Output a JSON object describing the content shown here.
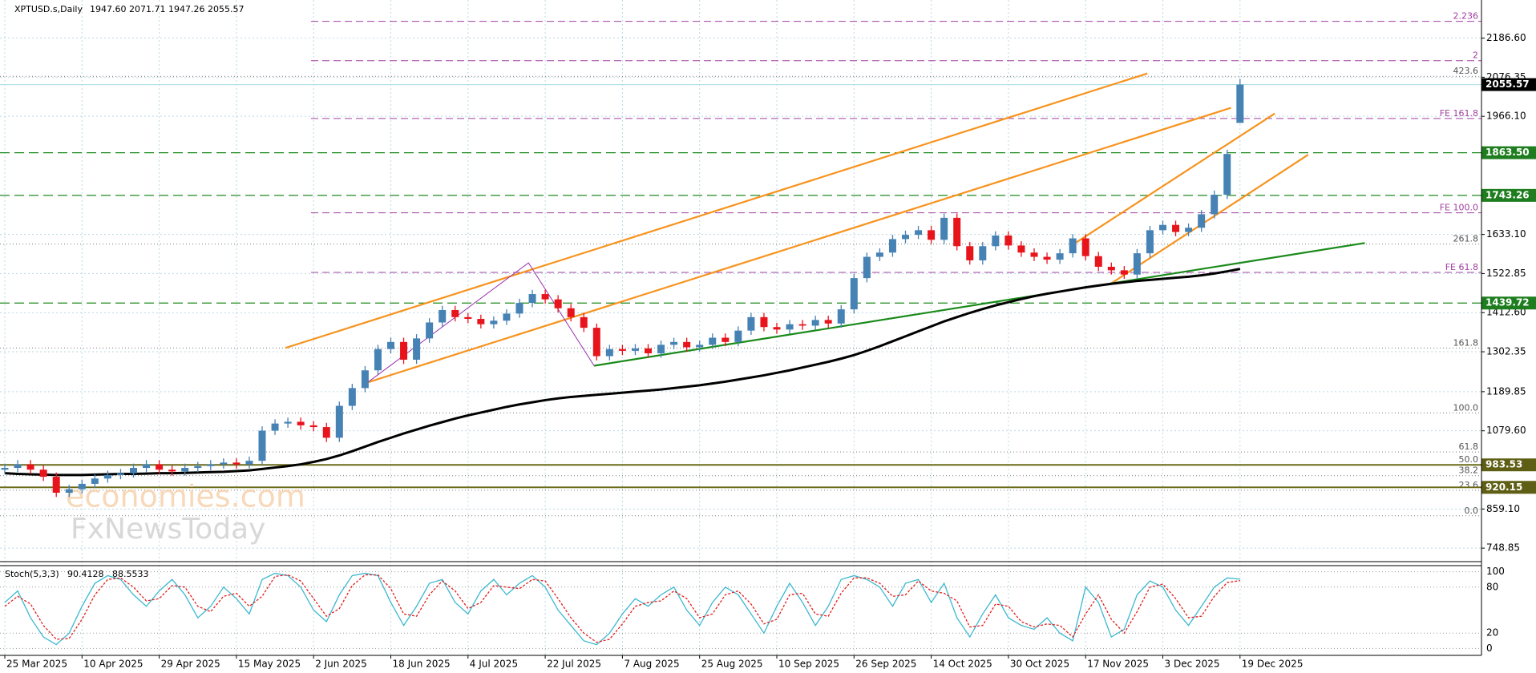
{
  "chart_data": {
    "type": "candlestick",
    "title": "XPTUSD.s,Daily",
    "ohlc_label": "1947.60 2071.71 1947.26 2055.57",
    "up_color": "#4682b4",
    "down_color": "#e8141c",
    "grid": true,
    "ylim": [
      713,
      2294
    ],
    "yticks": [
      {
        "value": 2186.6,
        "label": "2186.60"
      },
      2076.35,
      {
        "value": 1966.1,
        "label": "1966.10"
      },
      {
        "value": 1633.1,
        "label": "1633.10"
      },
      1522.85,
      {
        "value": 1412.6,
        "label": "1412.60"
      },
      1302.35,
      1189.85,
      {
        "value": 1079.6,
        "label": "1079.60"
      },
      {
        "value": 859.1,
        "label": "859.10"
      },
      748.85
    ],
    "categories": [
      "25 Mar 2025",
      null,
      null,
      null,
      null,
      null,
      "10 Apr 2025",
      null,
      null,
      null,
      null,
      null,
      "29 Apr 2025",
      null,
      null,
      null,
      null,
      null,
      "15 May 2025",
      null,
      null,
      null,
      null,
      null,
      "2 Jun 2025",
      null,
      null,
      null,
      null,
      null,
      "18 Jun 2025",
      null,
      null,
      null,
      null,
      null,
      "4 Jul 2025",
      null,
      null,
      null,
      null,
      null,
      "22 Jul 2025",
      null,
      null,
      null,
      null,
      null,
      "7 Aug 2025",
      null,
      null,
      null,
      null,
      null,
      "25 Aug 2025",
      null,
      null,
      null,
      null,
      null,
      "10 Sep 2025",
      null,
      null,
      null,
      null,
      null,
      "26 Sep 2025",
      null,
      null,
      null,
      null,
      null,
      "14 Oct 2025",
      null,
      null,
      null,
      null,
      null,
      "30 Oct 2025",
      null,
      null,
      null,
      null,
      null,
      "17 Nov 2025",
      null,
      null,
      null,
      null,
      null,
      "3 Dec 2025",
      null,
      null,
      null,
      null,
      null,
      "19 Dec 2025"
    ],
    "open": [
      970,
      975,
      985,
      970,
      950,
      905,
      915,
      930,
      945,
      955,
      960,
      975,
      985,
      970,
      965,
      975,
      980,
      985,
      990,
      985,
      995,
      1080,
      1100,
      1105,
      1095,
      1090,
      1060,
      1150,
      1200,
      1250,
      1310,
      1330,
      1280,
      1340,
      1385,
      1420,
      1400,
      1395,
      1380,
      1390,
      1410,
      1440,
      1465,
      1450,
      1425,
      1400,
      1370,
      1290,
      1310,
      1305,
      1312,
      1298,
      1322,
      1330,
      1315,
      1322,
      1342,
      1330,
      1362,
      1400,
      1372,
      1365,
      1380,
      1376,
      1392,
      1382,
      1422,
      1510,
      1570,
      1582,
      1620,
      1632,
      1645,
      1618,
      1680,
      1600,
      1560,
      1600,
      1630,
      1602,
      1582,
      1570,
      1562,
      1580,
      1622,
      1572,
      1542,
      1532,
      1520,
      1580,
      1645,
      1660,
      1640,
      1652,
      1690,
      1745,
      1947.6
    ],
    "high": [
      987,
      997,
      997,
      982,
      962,
      927,
      942,
      957,
      967,
      972,
      987,
      997,
      997,
      982,
      987,
      992,
      997,
      1002,
      1002,
      1007,
      1092,
      1112,
      1117,
      1117,
      1107,
      1102,
      1162,
      1212,
      1262,
      1322,
      1342,
      1342,
      1352,
      1397,
      1432,
      1432,
      1412,
      1407,
      1402,
      1422,
      1452,
      1477,
      1477,
      1462,
      1437,
      1412,
      1382,
      1322,
      1322,
      1324,
      1324,
      1334,
      1342,
      1342,
      1334,
      1354,
      1354,
      1374,
      1412,
      1412,
      1384,
      1392,
      1392,
      1404,
      1404,
      1434,
      1522,
      1582,
      1594,
      1632,
      1644,
      1657,
      1657,
      1692,
      1692,
      1612,
      1612,
      1642,
      1642,
      1614,
      1594,
      1582,
      1592,
      1634,
      1634,
      1584,
      1554,
      1544,
      1592,
      1657,
      1672,
      1672,
      1664,
      1702,
      1757,
      1872,
      2071.71
    ],
    "low": [
      958,
      963,
      958,
      938,
      893,
      893,
      903,
      918,
      933,
      943,
      948,
      963,
      958,
      953,
      953,
      963,
      968,
      973,
      973,
      973,
      983,
      1068,
      1088,
      1083,
      1078,
      1048,
      1048,
      1138,
      1188,
      1238,
      1298,
      1268,
      1268,
      1328,
      1373,
      1388,
      1383,
      1368,
      1368,
      1378,
      1398,
      1428,
      1438,
      1413,
      1388,
      1358,
      1278,
      1278,
      1293,
      1293,
      1286,
      1286,
      1310,
      1303,
      1303,
      1310,
      1318,
      1318,
      1350,
      1360,
      1353,
      1353,
      1364,
      1364,
      1370,
      1370,
      1410,
      1498,
      1558,
      1570,
      1608,
      1620,
      1606,
      1606,
      1588,
      1548,
      1548,
      1588,
      1590,
      1570,
      1558,
      1550,
      1550,
      1568,
      1560,
      1530,
      1520,
      1508,
      1508,
      1568,
      1633,
      1628,
      1628,
      1640,
      1678,
      1733,
      1947.26
    ],
    "close": [
      975,
      985,
      970,
      950,
      905,
      915,
      930,
      945,
      955,
      960,
      975,
      985,
      970,
      965,
      975,
      980,
      985,
      990,
      985,
      995,
      1080,
      1100,
      1105,
      1095,
      1090,
      1060,
      1150,
      1200,
      1250,
      1310,
      1330,
      1280,
      1340,
      1385,
      1420,
      1400,
      1395,
      1380,
      1390,
      1410,
      1440,
      1465,
      1450,
      1425,
      1400,
      1370,
      1290,
      1310,
      1305,
      1312,
      1298,
      1322,
      1330,
      1315,
      1322,
      1342,
      1330,
      1362,
      1400,
      1372,
      1365,
      1380,
      1376,
      1392,
      1382,
      1422,
      1510,
      1570,
      1582,
      1620,
      1632,
      1645,
      1618,
      1680,
      1600,
      1560,
      1600,
      1630,
      1602,
      1582,
      1570,
      1562,
      1580,
      1622,
      1572,
      1542,
      1532,
      1520,
      1580,
      1645,
      1660,
      1640,
      1652,
      1690,
      1745,
      1860,
      2055.57
    ],
    "ma": {
      "color": "#000000",
      "values": [
        960,
        958,
        957,
        956,
        955,
        955,
        955,
        956,
        957,
        958,
        958,
        959,
        960,
        960,
        961,
        962,
        963,
        964,
        966,
        968,
        972,
        976,
        980,
        985,
        992,
        1000,
        1010,
        1022,
        1035,
        1048,
        1060,
        1072,
        1083,
        1094,
        1104,
        1114,
        1123,
        1131,
        1139,
        1147,
        1154,
        1160,
        1166,
        1171,
        1175,
        1178,
        1181,
        1184,
        1187,
        1190,
        1193,
        1196,
        1200,
        1204,
        1208,
        1213,
        1218,
        1224,
        1230,
        1236,
        1243,
        1250,
        1258,
        1266,
        1274,
        1283,
        1293,
        1305,
        1318,
        1332,
        1346,
        1360,
        1374,
        1388,
        1400,
        1412,
        1423,
        1433,
        1442,
        1451,
        1459,
        1466,
        1472,
        1478,
        1484,
        1489,
        1494,
        1498,
        1502,
        1505,
        1508,
        1511,
        1514,
        1518,
        1523,
        1529,
        1536
      ]
    },
    "current_price": {
      "value": 2055.57,
      "label": "2055.57"
    },
    "support_levels": [
      {
        "value": 1863.5,
        "label": "1863.50"
      },
      {
        "value": 1743.26,
        "label": "1743.26"
      },
      {
        "value": 1439.72,
        "label": "1439.72"
      }
    ],
    "olive_levels": [
      {
        "value": 983.53,
        "label": "983.53"
      },
      {
        "value": 920.15,
        "label": "920.15"
      }
    ],
    "fib_retracement": [
      {
        "value": 2079,
        "label": "423.6"
      },
      {
        "value": 1606,
        "label": "261.8"
      },
      {
        "value": 1313,
        "label": "161.8"
      },
      {
        "value": 1130,
        "label": "100.0"
      },
      {
        "value": 1020,
        "label": "61.8"
      },
      {
        "value": 984,
        "label": "50.0"
      },
      {
        "value": 953,
        "label": "38.2"
      },
      {
        "value": 912,
        "label": "23.6"
      },
      {
        "value": 840,
        "label": "0.0"
      }
    ],
    "fib_expansion": [
      {
        "value": 2234,
        "label": "2.236"
      },
      {
        "value": 2123,
        "label": "2"
      },
      {
        "value": 1960,
        "label": "FE 161.8"
      },
      {
        "value": 1694,
        "label": "FE 100.0"
      },
      {
        "value": 1526,
        "label": "FE 61.8"
      }
    ],
    "trendlines": [
      {
        "color": "#f7931e",
        "points": [
          [
            21.8,
            1313
          ],
          [
            88.8,
            2087
          ]
        ]
      },
      {
        "color": "#f7931e",
        "points": [
          [
            28.2,
            1216
          ],
          [
            95.3,
            1990
          ]
        ]
      },
      {
        "color": "#f7931e",
        "points": [
          [
            83.2,
            1609
          ],
          [
            98.7,
            1974
          ]
        ]
      },
      {
        "color": "#f7931e",
        "points": [
          [
            85.9,
            1493
          ],
          [
            101.3,
            1858
          ]
        ]
      },
      {
        "color": "#1a8a1a",
        "points": [
          [
            45.8,
            1263
          ],
          [
            105.7,
            1609
          ]
        ]
      },
      {
        "color": "#9b30b0",
        "points": [
          [
            28.2,
            1216
          ],
          [
            40.7,
            1553
          ],
          [
            45.8,
            1263
          ]
        ]
      }
    ],
    "watermark": [
      "economies.com",
      "FxNewsToday"
    ],
    "indicator": {
      "type": "line",
      "title": "Stoch(5,3,3)",
      "ylim": [
        -9,
        108
      ],
      "yticks": [
        100,
        80,
        20,
        0
      ],
      "series": [
        {
          "color": "#3cb8d0",
          "values": [
            60,
            75,
            40,
            15,
            5,
            20,
            55,
            85,
            95,
            90,
            70,
            55,
            75,
            90,
            70,
            40,
            55,
            80,
            65,
            45,
            90,
            98,
            95,
            80,
            50,
            35,
            70,
            95,
            98,
            95,
            60,
            30,
            55,
            85,
            90,
            60,
            45,
            75,
            90,
            70,
            85,
            95,
            80,
            50,
            30,
            10,
            5,
            20,
            45,
            65,
            55,
            70,
            80,
            50,
            30,
            60,
            80,
            70,
            45,
            20,
            55,
            85,
            60,
            30,
            55,
            90,
            95,
            90,
            80,
            55,
            85,
            90,
            60,
            85,
            40,
            15,
            45,
            70,
            40,
            30,
            25,
            40,
            20,
            10,
            80,
            60,
            15,
            25,
            70,
            88,
            80,
            50,
            30,
            55,
            80,
            92,
            90.4128
          ]
        },
        {
          "color": "#e02020",
          "values": [
            55,
            68,
            58,
            30,
            12,
            13,
            38,
            70,
            90,
            92,
            80,
            62,
            65,
            82,
            80,
            55,
            48,
            68,
            72,
            55,
            68,
            94,
            96,
            88,
            65,
            42,
            52,
            82,
            96,
            96,
            78,
            45,
            42,
            70,
            88,
            75,
            52,
            60,
            82,
            80,
            78,
            90,
            88,
            65,
            40,
            20,
            8,
            12,
            32,
            55,
            60,
            62,
            75,
            65,
            40,
            45,
            70,
            75,
            58,
            32,
            38,
            70,
            72,
            45,
            42,
            72,
            92,
            92,
            85,
            68,
            70,
            88,
            75,
            72,
            62,
            28,
            30,
            58,
            55,
            35,
            28,
            32,
            30,
            15,
            45,
            70,
            38,
            20,
            48,
            80,
            84,
            65,
            40,
            42,
            68,
            86,
            88.5533
          ]
        }
      ]
    }
  }
}
